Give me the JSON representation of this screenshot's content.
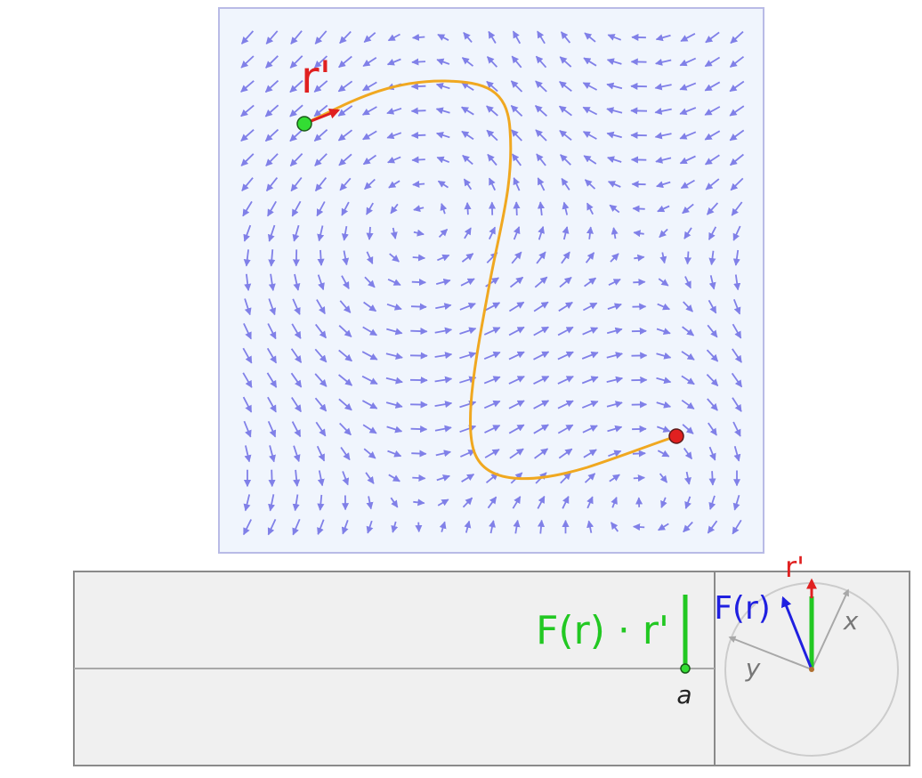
{
  "vector_field": {
    "arrow_color": "#8080e8",
    "background": "#f0f5fd",
    "border_color": "#b9bbe6"
  },
  "path": {
    "color": "#f0a820",
    "start_point_color": "#33dd33",
    "end_point_color": "#e02020",
    "tangent_label": "r'",
    "tangent_color": "#e02020"
  },
  "bottom_panel": {
    "background": "#f0f0f0",
    "border_color": "#8a8a8a",
    "product_label": "F(r) · r'",
    "product_color": "#22c822",
    "param_label": "a"
  },
  "vector_diagram": {
    "force_label": "F(r)",
    "force_color": "#2020e0",
    "tangent_label": "r'",
    "tangent_color": "#e02020",
    "x_axis_label": "x",
    "y_axis_label": "y",
    "axis_color": "#a8a8a8"
  }
}
